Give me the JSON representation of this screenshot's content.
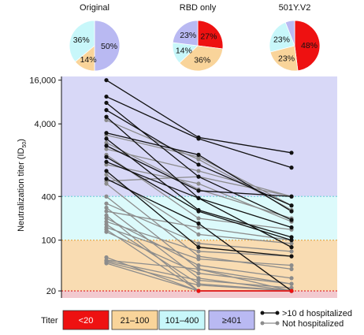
{
  "chart_data": {
    "type": "line",
    "ylabel": "Neutralization titer (ID",
    "ylabel_sub": "50",
    "ylabel_close": ")",
    "yscale": "log",
    "ylim": [
      16,
      18000
    ],
    "y_ticks": [
      {
        "value": 20,
        "label": "20"
      },
      {
        "value": 100,
        "label": "100"
      },
      {
        "value": 400,
        "label": "400"
      },
      {
        "value": 4000,
        "label": "4,000"
      },
      {
        "value": 16000,
        "label": "16,000"
      }
    ],
    "categories": [
      "Original",
      "RBD only",
      "501Y.V2"
    ],
    "bands": [
      {
        "label": "<20",
        "from": 16,
        "to": 20,
        "color": "#f2c9cf",
        "legend_color": "#ee1111"
      },
      {
        "label": "21–100",
        "from": 20,
        "to": 100,
        "color": "#f9dcb2",
        "legend_color": "#f9d49a"
      },
      {
        "label": "101–400",
        "from": 100,
        "to": 400,
        "color": "#dcfafb",
        "legend_color": "#c8f7fa"
      },
      {
        "label": "≥401",
        "from": 400,
        "to": 18000,
        "color": "#d8d8f7",
        "legend_color": "#b9b9f2"
      }
    ],
    "pies": [
      {
        "category": "Original",
        "slices": [
          {
            "band": "≥401",
            "value": 50,
            "label": "50%"
          },
          {
            "band": "21–100",
            "value": 14,
            "label": "14%"
          },
          {
            "band": "101–400",
            "value": 36,
            "label": "36%"
          }
        ]
      },
      {
        "category": "RBD only",
        "slices": [
          {
            "band": "<20",
            "value": 27,
            "label": "27%"
          },
          {
            "band": "21–100",
            "value": 36,
            "label": "36%"
          },
          {
            "band": "101–400",
            "value": 14,
            "label": "14%"
          },
          {
            "band": "≥401",
            "value": 23,
            "label": "23%"
          }
        ]
      },
      {
        "category": "501Y.V2",
        "slices": [
          {
            "band": "<20",
            "value": 48,
            "label": "48%"
          },
          {
            "band": "21–100",
            "value": 23,
            "label": "23%"
          },
          {
            "band": "101–400",
            "value": 23,
            "label": "23%"
          },
          {
            "band": "≥401",
            "value": 6,
            "label": ""
          }
        ]
      }
    ],
    "legend": {
      "title": "Titer",
      "groups": [
        {
          "key": "hosp",
          "label": ">10 d hospitalized",
          "color": "#111111"
        },
        {
          "key": "not",
          "label": "Not hospitalized",
          "color": "#8c8c8c"
        }
      ]
    },
    "series": [
      {
        "group": "hosp",
        "values": [
          16000,
          2600,
          1600
        ]
      },
      {
        "group": "hosp",
        "values": [
          9500,
          2500,
          1000
        ]
      },
      {
        "group": "hosp",
        "values": [
          7800,
          750,
          190
        ]
      },
      {
        "group": "hosp",
        "values": [
          6200,
          1100,
          300
        ]
      },
      {
        "group": "hosp",
        "values": [
          5000,
          380,
          150
        ]
      },
      {
        "group": "hosp",
        "values": [
          3000,
          1500,
          250
        ]
      },
      {
        "group": "hosp",
        "values": [
          2500,
          260,
          110
        ]
      },
      {
        "group": "hosp",
        "values": [
          2000,
          480,
          400
        ]
      },
      {
        "group": "hosp",
        "values": [
          1400,
          250,
          100
        ]
      },
      {
        "group": "hosp",
        "values": [
          1200,
          380,
          80
        ]
      },
      {
        "group": "hosp",
        "values": [
          900,
          80,
          60
        ]
      },
      {
        "group": "hosp",
        "values": [
          700,
          170,
          20
        ]
      },
      {
        "group": "not",
        "values": [
          4500,
          1300,
          260
        ]
      },
      {
        "group": "not",
        "values": [
          2800,
          1400,
          300
        ]
      },
      {
        "group": "not",
        "values": [
          2200,
          500,
          200
        ]
      },
      {
        "group": "not",
        "values": [
          1800,
          900,
          400
        ]
      },
      {
        "group": "not",
        "values": [
          1500,
          200,
          140
        ]
      },
      {
        "group": "not",
        "values": [
          1100,
          600,
          180
        ]
      },
      {
        "group": "not",
        "values": [
          800,
          120,
          90
        ]
      },
      {
        "group": "not",
        "values": [
          650,
          750,
          400
        ]
      },
      {
        "group": "not",
        "values": [
          600,
          60,
          40
        ]
      },
      {
        "group": "not",
        "values": [
          400,
          40,
          25
        ]
      },
      {
        "group": "not",
        "values": [
          320,
          90,
          70
        ]
      },
      {
        "group": "not",
        "values": [
          280,
          30,
          20
        ]
      },
      {
        "group": "not",
        "values": [
          250,
          150,
          100
        ]
      },
      {
        "group": "not",
        "values": [
          220,
          20,
          20
        ]
      },
      {
        "group": "not",
        "values": [
          200,
          45,
          30
        ]
      },
      {
        "group": "not",
        "values": [
          180,
          70,
          60
        ]
      },
      {
        "group": "not",
        "values": [
          165,
          25,
          20
        ]
      },
      {
        "group": "not",
        "values": [
          150,
          55,
          45
        ]
      },
      {
        "group": "not",
        "values": [
          140,
          20,
          20
        ]
      },
      {
        "group": "not",
        "values": [
          130,
          35,
          25
        ]
      },
      {
        "group": "not",
        "values": [
          58,
          20,
          20
        ]
      },
      {
        "group": "not",
        "values": [
          53,
          40,
          20
        ]
      },
      {
        "group": "not",
        "values": [
          50,
          24,
          20
        ]
      },
      {
        "group": "not",
        "values": [
          48,
          20,
          20
        ]
      },
      {
        "group": "not",
        "values": [
          52,
          28,
          22
        ]
      }
    ]
  }
}
